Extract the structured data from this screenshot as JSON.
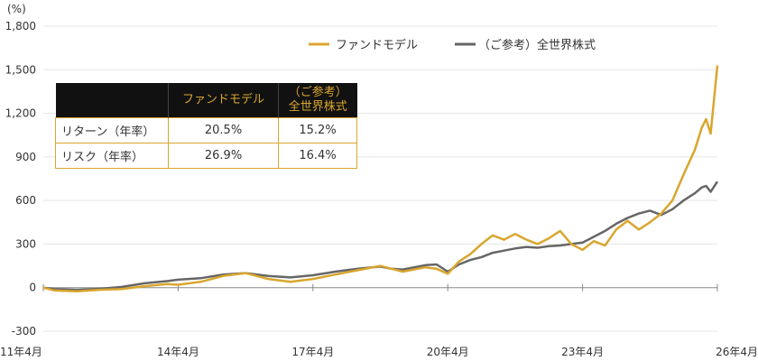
{
  "chart_data": {
    "type": "line",
    "yunit": "(%)",
    "ylim": [
      -300,
      1800
    ],
    "yticks": [
      "-300",
      "0",
      "300",
      "600",
      "900",
      "1,200",
      "1,500",
      "1,800"
    ],
    "ytick_values": [
      -300,
      0,
      300,
      600,
      900,
      1200,
      1500,
      1800
    ],
    "xticks": [
      "11年4月",
      "14年4月",
      "17年4月",
      "20年4月",
      "23年4月",
      "26年4月"
    ],
    "xtick_values": [
      2011.25,
      2014.25,
      2017.25,
      2020.25,
      2023.25,
      2026.25
    ],
    "xlim": [
      2011.25,
      2026.25
    ],
    "legend_position": "top-right",
    "colors": {
      "fund": "#d9a62e",
      "world": "#666666"
    },
    "series": [
      {
        "name": "ファンドモデル",
        "points": [
          [
            2011.25,
            0
          ],
          [
            2011.5,
            -20
          ],
          [
            2012.0,
            -25
          ],
          [
            2012.5,
            -15
          ],
          [
            2013.0,
            -10
          ],
          [
            2013.5,
            10
          ],
          [
            2014.0,
            25
          ],
          [
            2014.25,
            20
          ],
          [
            2014.75,
            40
          ],
          [
            2015.25,
            80
          ],
          [
            2015.75,
            100
          ],
          [
            2016.25,
            60
          ],
          [
            2016.75,
            40
          ],
          [
            2017.25,
            60
          ],
          [
            2017.75,
            90
          ],
          [
            2018.25,
            120
          ],
          [
            2018.75,
            150
          ],
          [
            2019.0,
            130
          ],
          [
            2019.25,
            110
          ],
          [
            2019.75,
            140
          ],
          [
            2020.0,
            130
          ],
          [
            2020.25,
            95
          ],
          [
            2020.5,
            180
          ],
          [
            2020.75,
            230
          ],
          [
            2021.0,
            300
          ],
          [
            2021.25,
            360
          ],
          [
            2021.5,
            330
          ],
          [
            2021.75,
            370
          ],
          [
            2022.0,
            330
          ],
          [
            2022.25,
            300
          ],
          [
            2022.5,
            340
          ],
          [
            2022.75,
            390
          ],
          [
            2023.0,
            300
          ],
          [
            2023.25,
            260
          ],
          [
            2023.5,
            320
          ],
          [
            2023.75,
            290
          ],
          [
            2024.0,
            400
          ],
          [
            2024.25,
            460
          ],
          [
            2024.5,
            400
          ],
          [
            2024.75,
            450
          ],
          [
            2025.0,
            510
          ],
          [
            2025.25,
            600
          ],
          [
            2025.5,
            780
          ],
          [
            2025.75,
            950
          ],
          [
            2025.9,
            1100
          ],
          [
            2026.0,
            1160
          ],
          [
            2026.1,
            1060
          ],
          [
            2026.25,
            1530
          ]
        ]
      },
      {
        "name": "（ご参考）全世界株式",
        "points": [
          [
            2011.25,
            0
          ],
          [
            2011.5,
            -10
          ],
          [
            2012.0,
            -15
          ],
          [
            2012.5,
            -8
          ],
          [
            2013.0,
            5
          ],
          [
            2013.5,
            30
          ],
          [
            2014.0,
            45
          ],
          [
            2014.25,
            55
          ],
          [
            2014.75,
            65
          ],
          [
            2015.25,
            90
          ],
          [
            2015.75,
            100
          ],
          [
            2016.25,
            80
          ],
          [
            2016.75,
            70
          ],
          [
            2017.25,
            85
          ],
          [
            2017.75,
            110
          ],
          [
            2018.25,
            130
          ],
          [
            2018.75,
            145
          ],
          [
            2019.0,
            130
          ],
          [
            2019.25,
            125
          ],
          [
            2019.75,
            155
          ],
          [
            2020.0,
            160
          ],
          [
            2020.25,
            110
          ],
          [
            2020.5,
            160
          ],
          [
            2020.75,
            190
          ],
          [
            2021.0,
            210
          ],
          [
            2021.25,
            240
          ],
          [
            2021.5,
            255
          ],
          [
            2021.75,
            270
          ],
          [
            2022.0,
            280
          ],
          [
            2022.25,
            275
          ],
          [
            2022.5,
            285
          ],
          [
            2022.75,
            290
          ],
          [
            2023.0,
            300
          ],
          [
            2023.25,
            310
          ],
          [
            2023.5,
            350
          ],
          [
            2023.75,
            390
          ],
          [
            2024.0,
            440
          ],
          [
            2024.25,
            480
          ],
          [
            2024.5,
            510
          ],
          [
            2024.75,
            530
          ],
          [
            2025.0,
            500
          ],
          [
            2025.25,
            540
          ],
          [
            2025.5,
            600
          ],
          [
            2025.75,
            650
          ],
          [
            2025.9,
            690
          ],
          [
            2026.0,
            700
          ],
          [
            2026.1,
            660
          ],
          [
            2026.25,
            730
          ]
        ]
      }
    ]
  },
  "legend": {
    "fund": "ファンドモデル",
    "world": "（ご参考）全世界株式"
  },
  "stats_table": {
    "header": {
      "fund": "ファンドモデル",
      "world_line1": "（ご参考）",
      "world_line2": "全世界株式"
    },
    "rows": [
      {
        "label": "リターン（年率）",
        "fund": "20.5%",
        "world": "15.2%"
      },
      {
        "label": "リスク（年率）",
        "fund": "26.9%",
        "world": "16.4%"
      }
    ]
  }
}
